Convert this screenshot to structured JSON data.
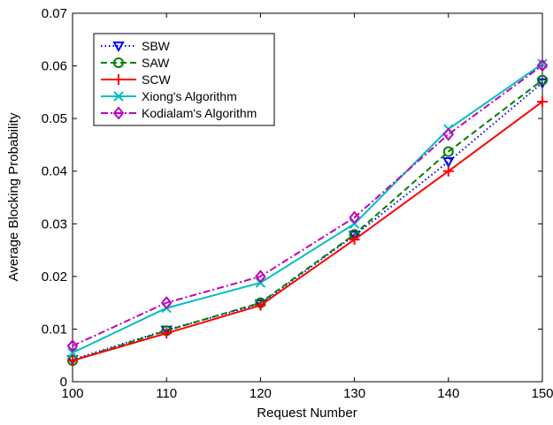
{
  "chart_data": {
    "type": "line",
    "xlabel": "Request Number",
    "ylabel": "Average Blocking Probability",
    "xlim": [
      100,
      150
    ],
    "ylim": [
      0,
      0.07
    ],
    "x_ticks": [
      "100",
      "110",
      "120",
      "130",
      "140",
      "150"
    ],
    "y_ticks": [
      "0",
      "0.01",
      "0.02",
      "0.03",
      "0.04",
      "0.05",
      "0.06",
      "0.07"
    ],
    "grid": false,
    "legend_position": "top-left",
    "x": [
      100,
      110,
      120,
      130,
      140,
      150
    ],
    "series": [
      {
        "name": "SBW",
        "color": "#0000ff",
        "dash": "dotted",
        "marker": "triangle-down",
        "values": [
          0.0042,
          0.0098,
          0.0148,
          0.0278,
          0.0418,
          0.0568
        ]
      },
      {
        "name": "SAW",
        "color": "#008000",
        "dash": "dashed",
        "marker": "circle",
        "values": [
          0.004,
          0.0097,
          0.015,
          0.028,
          0.0437,
          0.0573
        ]
      },
      {
        "name": "SCW",
        "color": "#ff0000",
        "dash": "solid",
        "marker": "plus",
        "values": [
          0.004,
          0.0092,
          0.0145,
          0.027,
          0.04,
          0.0532
        ]
      },
      {
        "name": "Xiong's Algorithm",
        "color": "#00bfbf",
        "dash": "solid",
        "marker": "x",
        "values": [
          0.0055,
          0.014,
          0.0188,
          0.03,
          0.048,
          0.0604
        ]
      },
      {
        "name": "Kodialam's Algorithm",
        "color": "#bf00bf",
        "dash": "dashdot",
        "marker": "diamond",
        "values": [
          0.0068,
          0.015,
          0.02,
          0.0312,
          0.047,
          0.0601
        ]
      }
    ]
  }
}
